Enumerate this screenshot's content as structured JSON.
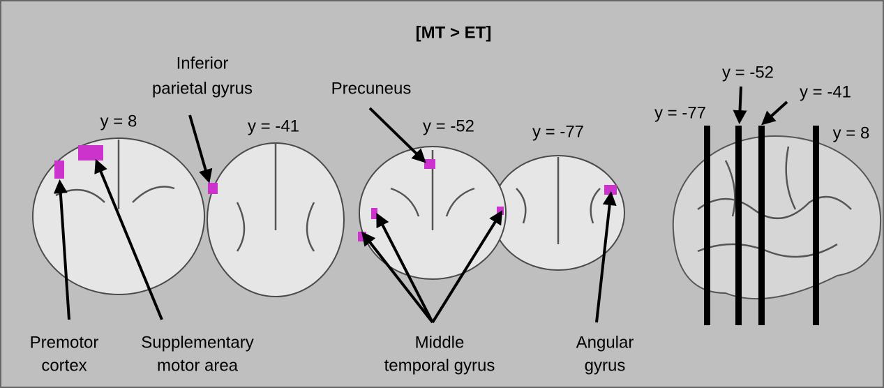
{
  "title": "[MT > ET]",
  "slices": [
    {
      "label": "y = 8"
    },
    {
      "label": "y = -41"
    },
    {
      "label": "y = -52"
    },
    {
      "label": "y = -77"
    }
  ],
  "sagittal_labels": [
    {
      "label": "y = -77"
    },
    {
      "label": "y = -52"
    },
    {
      "label": "y = -41"
    },
    {
      "label": "y = 8"
    }
  ],
  "regions": [
    {
      "lines": [
        "Inferior",
        "parietal gyrus"
      ]
    },
    {
      "lines": [
        "Precuneus"
      ]
    },
    {
      "lines": [
        "Premotor",
        "cortex"
      ]
    },
    {
      "lines": [
        "Supplementary",
        "motor area"
      ]
    },
    {
      "lines": [
        "Middle",
        "temporal gyrus"
      ]
    },
    {
      "lines": [
        "Angular",
        "gyrus"
      ]
    }
  ]
}
